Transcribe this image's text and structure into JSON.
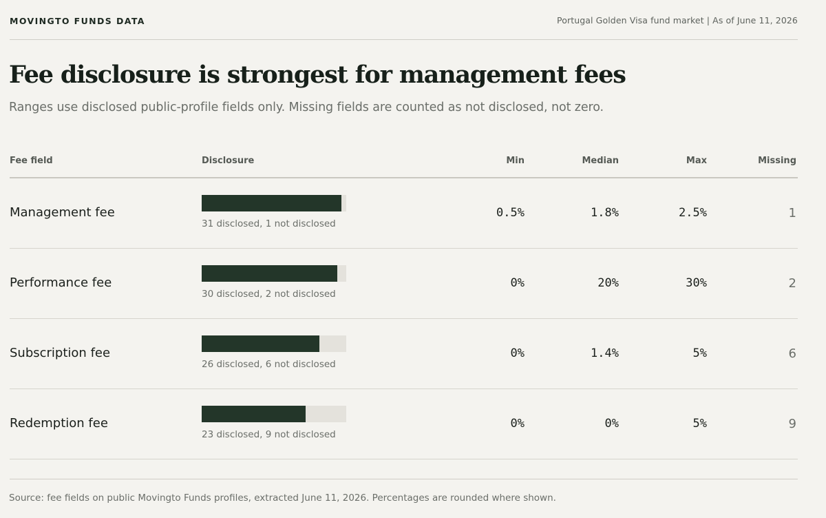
{
  "header": {
    "brand": "MOVINGTO FUNDS DATA",
    "meta": "Portugal Golden Visa fund market | As of June 11, 2026"
  },
  "title": "Fee disclosure is strongest for management fees",
  "subtitle": "Ranges use disclosed public-profile fields only. Missing fields are counted as not disclosed, not zero.",
  "columns": {
    "fee_field": "Fee field",
    "disclosure": "Disclosure",
    "min": "Min",
    "median": "Median",
    "max": "Max",
    "missing": "Missing"
  },
  "colors": {
    "bar_fill": "#233629",
    "bar_track": "#e4e2dc",
    "background": "#f4f3ef"
  },
  "chart_data": {
    "type": "table",
    "rows": [
      {
        "label": "Management fee",
        "disclosed": 31,
        "not_disclosed": 1,
        "caption": "31 disclosed, 1 not disclosed",
        "min": "0.5%",
        "median": "1.8%",
        "max": "2.5%",
        "missing": "1"
      },
      {
        "label": "Performance fee",
        "disclosed": 30,
        "not_disclosed": 2,
        "caption": "30 disclosed, 2 not disclosed",
        "min": "0%",
        "median": "20%",
        "max": "30%",
        "missing": "2"
      },
      {
        "label": "Subscription fee",
        "disclosed": 26,
        "not_disclosed": 6,
        "caption": "26 disclosed, 6 not disclosed",
        "min": "0%",
        "median": "1.4%",
        "max": "5%",
        "missing": "6"
      },
      {
        "label": "Redemption fee",
        "disclosed": 23,
        "not_disclosed": 9,
        "caption": "23 disclosed, 9 not disclosed",
        "min": "0%",
        "median": "0%",
        "max": "5%",
        "missing": "9"
      }
    ]
  },
  "source": "Source: fee fields on public Movingto Funds profiles, extracted June 11, 2026. Percentages are rounded where shown."
}
